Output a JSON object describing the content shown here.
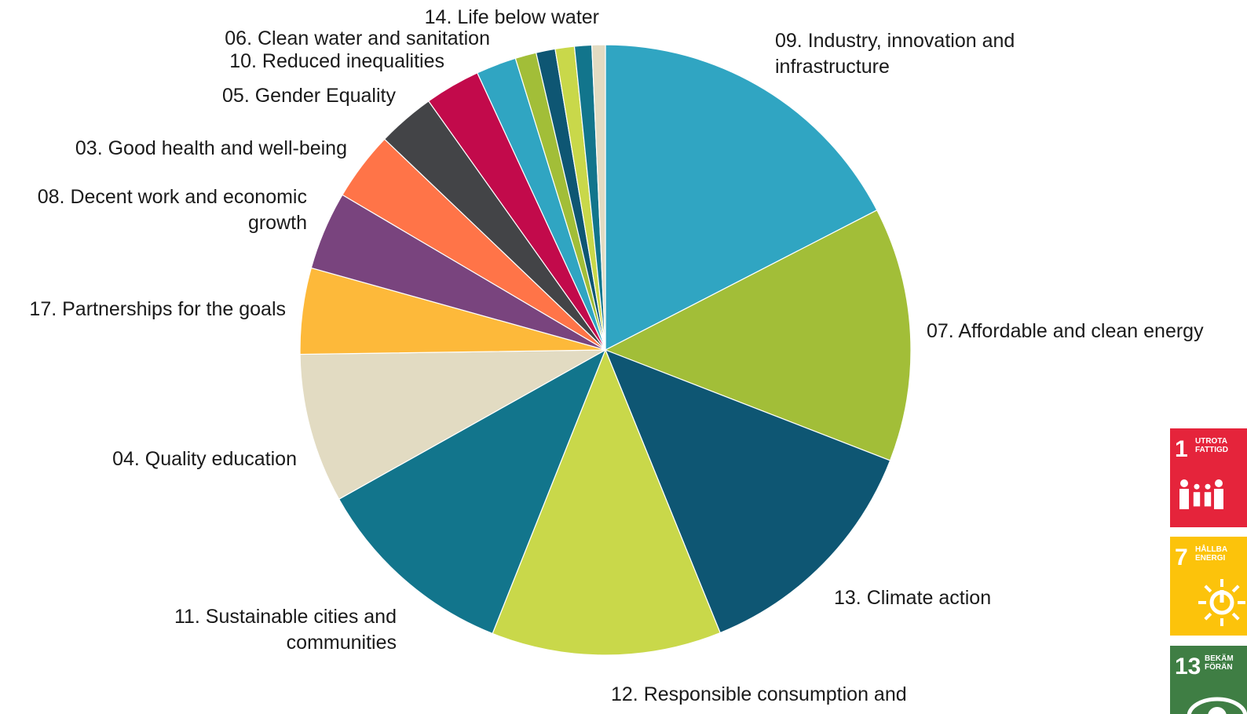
{
  "chart_data": {
    "type": "pie",
    "start_angle_deg": 0,
    "direction": "clockwise",
    "slices": [
      {
        "label_lines": [
          "09. Industry, innovation and",
          "infrastructure"
        ],
        "value": 17.2,
        "color": "#30A5C2"
      },
      {
        "label_lines": [
          "07. Affordable and clean energy"
        ],
        "value": 13.3,
        "color": "#A2BE38"
      },
      {
        "label_lines": [
          "13. Climate action"
        ],
        "value": 12.8,
        "color": "#0E5673"
      },
      {
        "label_lines": [
          "12. Responsible consumption and"
        ],
        "value": 12.0,
        "color": "#C9D84A"
      },
      {
        "label_lines": [
          "11. Sustainable cities and",
          "communities"
        ],
        "value": 10.7,
        "color": "#12758C"
      },
      {
        "label_lines": [
          "04. Quality education"
        ],
        "value": 7.8,
        "color": "#E2DBC2"
      },
      {
        "label_lines": [
          "17. Partnerships for the goals"
        ],
        "value": 4.5,
        "color": "#FDB93A"
      },
      {
        "label_lines": [
          "08. Decent work and economic",
          "growth"
        ],
        "value": 4.1,
        "color": "#79447E"
      },
      {
        "label_lines": [
          "03. Good health and well-being"
        ],
        "value": 3.6,
        "color": "#FF7448"
      },
      {
        "label_lines": [
          "05. Gender Equality"
        ],
        "value": 3.0,
        "color": "#434447"
      },
      {
        "label_lines": [
          "10. Reduced inequalities"
        ],
        "value": 2.9,
        "color": "#C20A4B"
      },
      {
        "label_lines": [
          "06. Clean water and sanitation"
        ],
        "value": 2.1,
        "color": "#30A5C2"
      },
      {
        "label_lines": [
          ""
        ],
        "value": 1.1,
        "color": "#A2BE38"
      },
      {
        "label_lines": [
          ""
        ],
        "value": 1.0,
        "color": "#0E5673"
      },
      {
        "label_lines": [
          "14. Life below water"
        ],
        "value": 1.0,
        "color": "#C9D84A"
      },
      {
        "label_lines": [
          ""
        ],
        "value": 0.9,
        "color": "#12758C"
      },
      {
        "label_lines": [
          ""
        ],
        "value": 0.7,
        "color": "#E2DBC2"
      }
    ]
  },
  "sdg_tiles": [
    {
      "number": "1",
      "caption_lines": [
        "UTROTA",
        "FATTIGD"
      ],
      "icon": "family-icon",
      "color": "#E5243B"
    },
    {
      "number": "7",
      "caption_lines": [
        "HÅLLBA",
        "ENERGI"
      ],
      "icon": "sun-power-icon",
      "color": "#FCC30B"
    },
    {
      "number": "13",
      "caption_lines": [
        "BEKÄM",
        "FÖRÄN"
      ],
      "icon": "globe-eye-icon",
      "color": "#3F7E44"
    }
  ]
}
